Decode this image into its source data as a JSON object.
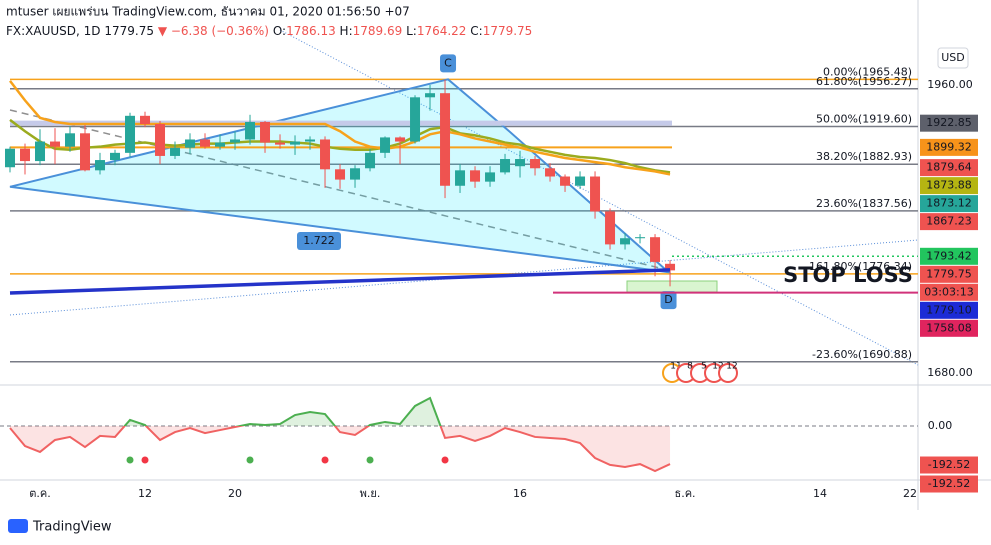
{
  "header": {
    "line1": "mtuser เผยแพร่บน TradingView.com, ธันวาคม 01, 2020 01:56:50 +07",
    "symbol": "FX:XAUUSD, 1D",
    "last": "1779.75",
    "change": "▼ −6.38 (−0.36%)",
    "ohlc": [
      [
        "O:",
        "1786.13"
      ],
      [
        "H:",
        "1789.69"
      ],
      [
        "L:",
        "1764.22"
      ],
      [
        "C:",
        "1779.75"
      ]
    ],
    "currency": "USD"
  },
  "footer": {
    "brand": "TradingView"
  },
  "chart_data": {
    "type": "candlestick",
    "x": [
      -2,
      -1,
      0,
      1,
      2,
      3,
      4,
      5,
      6,
      7,
      8,
      9,
      10,
      11,
      12,
      13,
      14,
      15,
      16,
      17,
      18,
      19,
      20,
      21,
      22,
      23,
      24,
      25,
      26,
      27,
      28,
      29,
      30,
      31,
      32,
      33,
      34,
      35,
      36,
      37,
      38,
      39,
      40,
      41,
      42
    ],
    "open": [
      1880,
      1898,
      1886,
      1905,
      1900,
      1913,
      1877,
      1887,
      1894,
      1930,
      1922,
      1891,
      1899,
      1907,
      1900,
      1904,
      1907,
      1924,
      1904,
      1902,
      1905,
      1907,
      1878,
      1868,
      1879,
      1894,
      1909,
      1905,
      1948,
      1952,
      1862,
      1877,
      1866,
      1875,
      1881,
      1888,
      1879,
      1871,
      1862,
      1871,
      1837,
      1805,
      1811,
      1812,
      1786.13
    ],
    "high": [
      1900,
      1903,
      1917,
      1918,
      1920,
      1921,
      1894,
      1897,
      1933,
      1934,
      1925,
      1905,
      1913,
      1913,
      1912,
      1915,
      1931,
      1925,
      1912,
      1911,
      1910,
      1910,
      1883,
      1882,
      1898,
      1910,
      1910,
      1950,
      1960,
      1965,
      1883,
      1881,
      1881,
      1893,
      1896,
      1891,
      1884,
      1873,
      1876,
      1876,
      1840,
      1816,
      1815,
      1815,
      1789.69
    ],
    "low": [
      1875,
      1873,
      1882,
      1883,
      1895,
      1876,
      1873,
      1882,
      1890,
      1919,
      1883,
      1888,
      1893,
      1898,
      1897,
      1897,
      1902,
      1894,
      1898,
      1892,
      1897,
      1860,
      1859,
      1860,
      1876,
      1889,
      1883,
      1903,
      1935,
      1850,
      1855,
      1860,
      1861,
      1873,
      1870,
      1872,
      1866,
      1856,
      1859,
      1830,
      1800,
      1800,
      1806,
      1774,
      1764.22
    ],
    "close": [
      1898,
      1886,
      1905,
      1900,
      1913,
      1877,
      1887,
      1894,
      1930,
      1922,
      1891,
      1899,
      1907,
      1900,
      1904,
      1907,
      1924,
      1904,
      1902,
      1905,
      1907,
      1878,
      1868,
      1879,
      1894,
      1909,
      1905,
      1948,
      1952,
      1862,
      1877,
      1866,
      1875,
      1888,
      1888,
      1879,
      1871,
      1862,
      1871,
      1837,
      1805,
      1811,
      1812,
      1788,
      1779.75
    ],
    "up_color": "#26a69a",
    "down_color": "#ef5350",
    "series": [
      {
        "color": "#9bab1e",
        "values": [
          1926,
          1915,
          1905,
          1898,
          1897,
          1899,
          1900,
          1902,
          1903,
          1904,
          1902,
          1901,
          1902,
          1903,
          1903,
          1904,
          1905,
          1905,
          1905,
          1904,
          1903,
          1900,
          1898,
          1897,
          1897,
          1899,
          1903,
          1910,
          1917,
          1919,
          1913,
          1911,
          1908,
          1904,
          1902,
          1898,
          1895,
          1892,
          1890,
          1889,
          1887,
          1884,
          1880,
          1877,
          1875
        ]
      },
      {
        "color": "#f7a21b",
        "values": [
          1964,
          1945,
          1928,
          1924,
          1922,
          1922,
          1922,
          1922,
          1922,
          1922,
          1922,
          1922,
          1922,
          1922,
          1922,
          1922,
          1922,
          1922,
          1922,
          1922,
          1922,
          1922,
          1915,
          1905,
          1900,
          1898,
          1900,
          1905,
          1912,
          1915,
          1912,
          1908,
          1905,
          1902,
          1899,
          1895,
          1892,
          1889,
          1887,
          1885,
          1883,
          1880,
          1878,
          1876,
          1873
        ]
      }
    ],
    "xlim": [
      -2.667,
      58.53
    ],
    "xticks": [
      {
        "value": 0,
        "label": "ต.ค."
      },
      {
        "value": 7,
        "label": "12"
      },
      {
        "value": 13,
        "label": "20"
      },
      {
        "value": 22,
        "label": "พ.ย."
      },
      {
        "value": 32,
        "label": "16"
      },
      {
        "value": 43,
        "label": "ธ.ค."
      },
      {
        "value": 52,
        "label": "14"
      },
      {
        "value": 58,
        "label": "22"
      }
    ],
    "ylim": [
      1668.3,
      2042.6
    ],
    "yticks": [
      {
        "value": 1680,
        "label": "1680.00"
      },
      {
        "value": 1960,
        "label": "1960.00"
      }
    ],
    "fibs": [
      {
        "value": 1965.48,
        "label": "0.00%(1965.48)",
        "color": "#f7a21b"
      },
      {
        "value": 1956.27,
        "label": "61.80%(1956.27)",
        "color": "#787b86"
      },
      {
        "value": 1919.6,
        "label": "50.00%(1919.60)",
        "color": "#787b86"
      },
      {
        "value": 1882.93,
        "label": "38.20%(1882.93)",
        "color": "#787b86"
      },
      {
        "value": 1837.56,
        "label": "23.60%(1837.56)",
        "color": "#787b86"
      },
      {
        "value": 1776.34,
        "label": "161.80%(1776.34)",
        "color": "#f7a21b"
      },
      {
        "value": 1690.88,
        "label": "-23.60%(1690.88)",
        "color": "#787b86"
      }
    ],
    "hlines": [
      {
        "value": 1922.85,
        "color": "#c5cae9"
      },
      {
        "value": 1899.32,
        "color": "#f7a21b"
      },
      {
        "value": 1793.42,
        "color": "#22c55e"
      },
      {
        "value": 1758.08,
        "color": "#d1327a"
      }
    ],
    "trendline": {
      "color": "#2433c9",
      "x": [
        -2,
        42
      ],
      "y": [
        1757.8,
        1780.2
      ]
    },
    "pattern": {
      "x": [
        -2,
        27.2,
        31.2,
        41.9
      ],
      "y": [
        1861,
        1965.48,
        1916,
        1778
      ],
      "labels": [
        null,
        "C",
        null,
        "D"
      ],
      "ratio": "1.722"
    },
    "annotations": [
      {
        "text": "STOP LOSS",
        "color": "#f23645"
      }
    ],
    "tags": [
      {
        "value": 1922.85,
        "label": "1922.85",
        "color": "#5d606b"
      },
      {
        "value": 1899.32,
        "label": "1899.32",
        "color": "#f7931a"
      },
      {
        "value": 1879.64,
        "label": "1879.64",
        "color": "#ef5350"
      },
      {
        "value": 1873.88,
        "label": "1873.88",
        "color": "#b5b512"
      },
      {
        "value": 1873.12,
        "label": "1873.12",
        "color": "#26a69a"
      },
      {
        "value": 1867.23,
        "label": "1867.23",
        "color": "#ef5350"
      },
      {
        "value": 1793.42,
        "label": "1793.42",
        "color": "#22c55e"
      },
      {
        "value": 1779.75,
        "label": "1779.75",
        "color": "#ef5350"
      },
      {
        "label": "03:03:13",
        "color": "#ef5350"
      },
      {
        "value": 1779.1,
        "label": "1779.10",
        "color": "#1c2bd6"
      },
      {
        "value": 1758.08,
        "label": "1758.08",
        "color": "#e0245e"
      }
    ],
    "events": [
      "11",
      "8",
      "5",
      "12",
      "12"
    ],
    "oscillator": {
      "ylim": [
        -266.5,
        202.4
      ],
      "yticks": [
        {
          "value": 0,
          "label": "0.00"
        }
      ],
      "up_color": "#4caf50",
      "down_color": "#f06262",
      "values": [
        -10,
        -99,
        -128,
        -69,
        -54,
        -104,
        -49,
        -54,
        30,
        5,
        -69,
        -30,
        -10,
        -35,
        -20,
        -5,
        10,
        5,
        10,
        54,
        69,
        59,
        -30,
        -44,
        5,
        20,
        10,
        99,
        138,
        -59,
        -49,
        -74,
        -49,
        -10,
        -30,
        -54,
        -59,
        -64,
        -84,
        -158,
        -192,
        -202,
        -188,
        -222,
        -188
      ],
      "buy_signals": [
        6,
        14,
        22
      ],
      "sell_signals": [
        7,
        19,
        27
      ],
      "tags": [
        {
          "value": -192.52,
          "label": "-192.52",
          "color": "#ef5350"
        },
        {
          "value": -192.52,
          "label": "-192.52",
          "color": "#ef5350"
        }
      ]
    }
  }
}
